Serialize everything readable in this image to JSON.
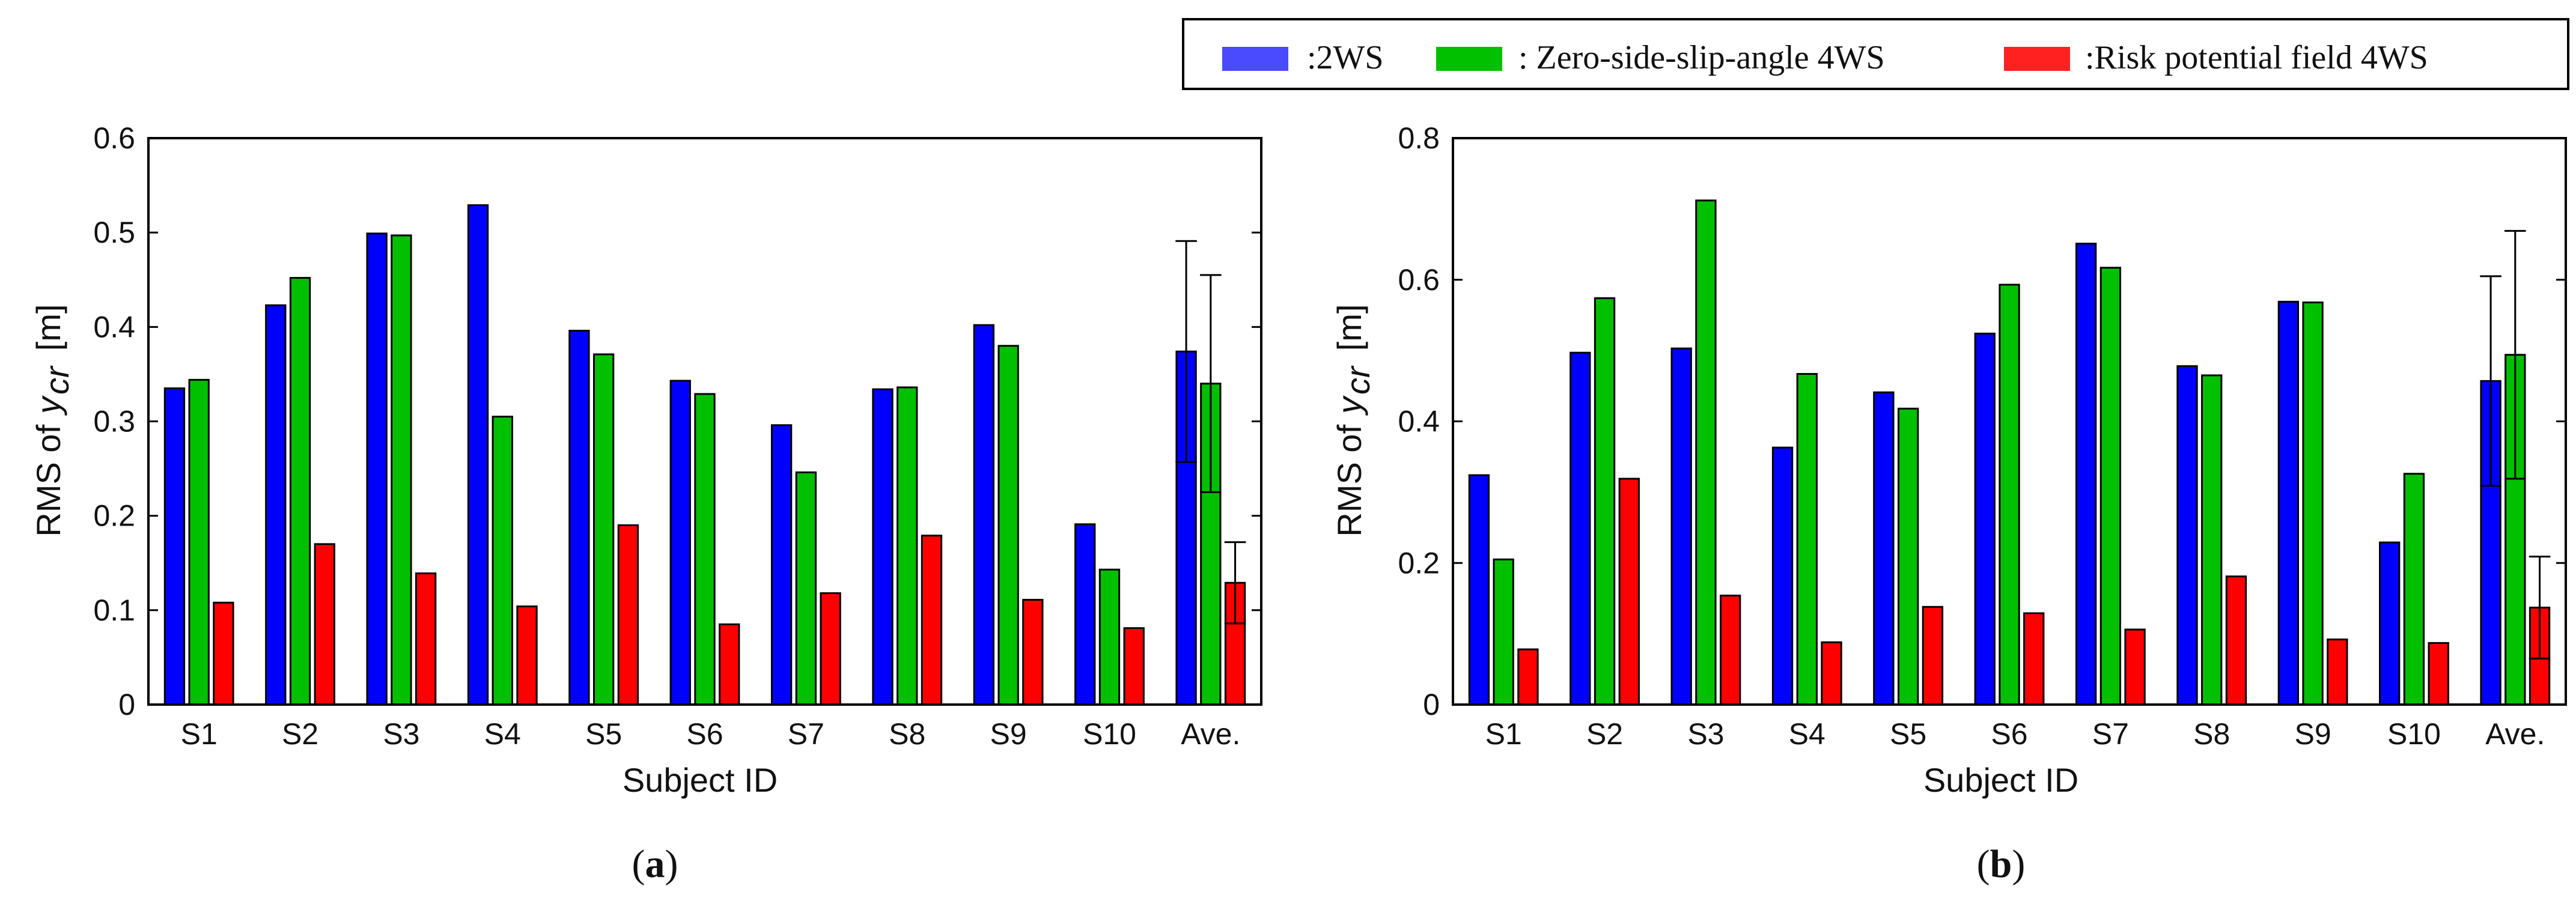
{
  "legend": {
    "items": [
      {
        "label": ":2WS",
        "color": "#4a4aff"
      },
      {
        "label": ": Zero-side-slip-angle 4WS",
        "color": "#00c000"
      },
      {
        "label": ":Risk potential field 4WS",
        "color": "#ff2020"
      }
    ]
  },
  "colors": {
    "s2ws": "#0000ff",
    "zero4ws": "#00c000",
    "risk4ws": "#ff0000"
  },
  "chart_data": [
    {
      "type": "bar",
      "panel_label": "(a)",
      "panel_letter": "a",
      "xlabel": "Subject ID",
      "ylabel_prefix": "RMS of",
      "ylabel_var": "y",
      "ylabel_sub": "cr",
      "ylabel_unit": "[m]",
      "ylim": [
        0,
        0.6
      ],
      "yticks": [
        0,
        0.1,
        0.2,
        0.3,
        0.4,
        0.5,
        0.6
      ],
      "ytick_labels": [
        "0",
        "0.1",
        "0.2",
        "0.3",
        "0.4",
        "0.5",
        "0.6"
      ],
      "categories": [
        "S1",
        "S2",
        "S3",
        "S4",
        "S5",
        "S6",
        "S7",
        "S8",
        "S9",
        "S10",
        "Ave."
      ],
      "series": [
        {
          "name": "2WS",
          "values": [
            0.335,
            0.423,
            0.499,
            0.529,
            0.396,
            0.343,
            0.296,
            0.334,
            0.402,
            0.191,
            0.374
          ],
          "error": [
            null,
            null,
            null,
            null,
            null,
            null,
            null,
            null,
            null,
            null,
            0.117
          ]
        },
        {
          "name": "Zero-side-slip-angle 4WS",
          "values": [
            0.344,
            0.452,
            0.497,
            0.305,
            0.371,
            0.329,
            0.246,
            0.336,
            0.38,
            0.143,
            0.34
          ],
          "error": [
            null,
            null,
            null,
            null,
            null,
            null,
            null,
            null,
            null,
            null,
            0.115
          ]
        },
        {
          "name": "Risk potential field 4WS",
          "values": [
            0.108,
            0.17,
            0.139,
            0.104,
            0.19,
            0.085,
            0.118,
            0.179,
            0.111,
            0.081,
            0.129
          ],
          "error": [
            null,
            null,
            null,
            null,
            null,
            null,
            null,
            null,
            null,
            null,
            0.043
          ]
        }
      ]
    },
    {
      "type": "bar",
      "panel_label": "(b)",
      "panel_letter": "b",
      "xlabel": "Subject ID",
      "ylabel_prefix": "RMS of",
      "ylabel_var": "y",
      "ylabel_sub": "cr",
      "ylabel_unit": "[m]",
      "ylim": [
        0,
        0.8
      ],
      "yticks": [
        0,
        0.2,
        0.4,
        0.6,
        0.8
      ],
      "ytick_labels": [
        "0",
        "0.2",
        "0.4",
        "0.6",
        "0.8"
      ],
      "categories": [
        "S1",
        "S2",
        "S3",
        "S4",
        "S5",
        "S6",
        "S7",
        "S8",
        "S9",
        "S10",
        "Ave."
      ],
      "series": [
        {
          "name": "2WS",
          "values": [
            0.324,
            0.497,
            0.503,
            0.363,
            0.441,
            0.524,
            0.651,
            0.478,
            0.569,
            0.229,
            0.457
          ],
          "error": [
            null,
            null,
            null,
            null,
            null,
            null,
            null,
            null,
            null,
            null,
            0.148
          ]
        },
        {
          "name": "Zero-side-slip-angle 4WS",
          "values": [
            0.205,
            0.574,
            0.712,
            0.467,
            0.418,
            0.593,
            0.617,
            0.465,
            0.568,
            0.326,
            0.494
          ],
          "error": [
            null,
            null,
            null,
            null,
            null,
            null,
            null,
            null,
            null,
            null,
            0.175
          ]
        },
        {
          "name": "Risk potential field 4WS",
          "values": [
            0.078,
            0.319,
            0.154,
            0.088,
            0.138,
            0.129,
            0.106,
            0.181,
            0.092,
            0.087,
            0.137
          ],
          "error": [
            null,
            null,
            null,
            null,
            null,
            null,
            null,
            null,
            null,
            null,
            0.072
          ]
        }
      ]
    }
  ]
}
